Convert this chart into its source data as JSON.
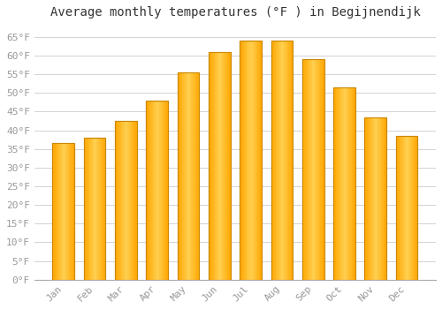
{
  "title": "Average monthly temperatures (°F ) in Begijnendijk",
  "months": [
    "Jan",
    "Feb",
    "Mar",
    "Apr",
    "May",
    "Jun",
    "Jul",
    "Aug",
    "Sep",
    "Oct",
    "Nov",
    "Dec"
  ],
  "values": [
    36.5,
    38.0,
    42.5,
    48.0,
    55.5,
    61.0,
    64.0,
    64.0,
    59.0,
    51.5,
    43.5,
    38.5
  ],
  "bar_color_main": "#FFA500",
  "bar_color_light": "#FFD050",
  "bar_edge_color": "#CC8800",
  "background_color": "#FFFFFF",
  "grid_color": "#CCCCCC",
  "ylim": [
    0,
    68
  ],
  "yticks": [
    0,
    5,
    10,
    15,
    20,
    25,
    30,
    35,
    40,
    45,
    50,
    55,
    60,
    65
  ],
  "title_fontsize": 10,
  "tick_fontsize": 8,
  "title_color": "#333333",
  "tick_color": "#999999",
  "font_family": "monospace",
  "bar_width": 0.7
}
